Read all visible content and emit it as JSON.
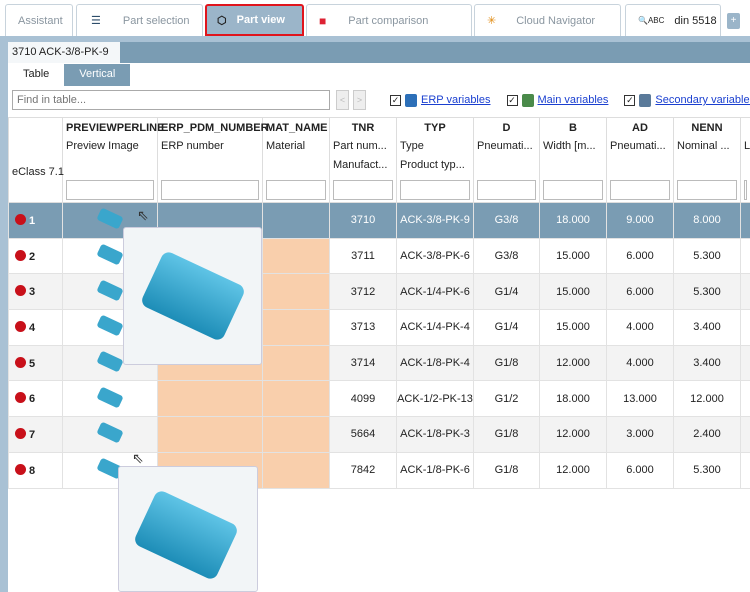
{
  "tabs": [
    {
      "label": "Assistant"
    },
    {
      "label": "Part selection",
      "icon": "stack-icon"
    },
    {
      "label": "Part view",
      "icon": "cubes-icon",
      "active": true
    },
    {
      "label": "Part comparison",
      "icon": "compare-icon"
    },
    {
      "label": "Cloud Navigator",
      "icon": "network-icon"
    },
    {
      "label": "din 5518",
      "icon": "search-abc-icon"
    }
  ],
  "add_tab": "+",
  "part_title": "3710 ACK-3/8-PK-9",
  "view_tabs": [
    "Table",
    "Vertical"
  ],
  "find_placeholder": "Find in table...",
  "filters": [
    {
      "label": "ERP variables",
      "checked": true
    },
    {
      "label": "Main variables",
      "checked": true
    },
    {
      "label": "Secondary variables",
      "checked": true
    }
  ],
  "table": {
    "corner": "eClass 7.1",
    "columns": [
      {
        "name": "PREVIEWPERLINE",
        "l1": "Preview Image",
        "l2": ""
      },
      {
        "name": "ERP_PDM_NUMBER",
        "l1": "ERP number",
        "l2": ""
      },
      {
        "name": "MAT_NAME",
        "l1": "Material",
        "l2": ""
      },
      {
        "name": "TNR",
        "l1": "Part num...",
        "l2": "Manufact..."
      },
      {
        "name": "TYP",
        "l1": "Type",
        "l2": "Product typ..."
      },
      {
        "name": "D",
        "l1": "Pneumati...",
        "l2": ""
      },
      {
        "name": "B",
        "l1": "Width [m...",
        "l2": ""
      },
      {
        "name": "AD",
        "l1": "Pneumati...",
        "l2": ""
      },
      {
        "name": "NENN",
        "l1": "Nominal ...",
        "l2": ""
      },
      {
        "name": "",
        "l1": "L",
        "l2": ""
      }
    ],
    "rows": [
      {
        "n": "1",
        "tnr": "3710",
        "typ": "ACK-3/8-PK-9",
        "d": "G3/8",
        "b": "18.000",
        "ad": "9.000",
        "nenn": "8.000"
      },
      {
        "n": "2",
        "tnr": "3711",
        "typ": "ACK-3/8-PK-6",
        "d": "G3/8",
        "b": "15.000",
        "ad": "6.000",
        "nenn": "5.300"
      },
      {
        "n": "3",
        "tnr": "3712",
        "typ": "ACK-1/4-PK-6",
        "d": "G1/4",
        "b": "15.000",
        "ad": "6.000",
        "nenn": "5.300"
      },
      {
        "n": "4",
        "tnr": "3713",
        "typ": "ACK-1/4-PK-4",
        "d": "G1/4",
        "b": "15.000",
        "ad": "4.000",
        "nenn": "3.400"
      },
      {
        "n": "5",
        "tnr": "3714",
        "typ": "ACK-1/8-PK-4",
        "d": "G1/8",
        "b": "12.000",
        "ad": "4.000",
        "nenn": "3.400"
      },
      {
        "n": "6",
        "tnr": "4099",
        "typ": "ACK-1/2-PK-13",
        "d": "G1/2",
        "b": "18.000",
        "ad": "13.000",
        "nenn": "12.000"
      },
      {
        "n": "7",
        "tnr": "5664",
        "typ": "ACK-1/8-PK-3",
        "d": "G1/8",
        "b": "12.000",
        "ad": "3.000",
        "nenn": "2.400"
      },
      {
        "n": "8",
        "tnr": "7842",
        "typ": "ACK-1/8-PK-6",
        "d": "G1/8",
        "b": "12.000",
        "ad": "6.000",
        "nenn": "5.300"
      }
    ]
  },
  "colors": {
    "accent": "#7a9cb3",
    "highlight_border": "#e0141c",
    "missing_value": "#f9cfac",
    "status_dot": "#c8101a"
  }
}
